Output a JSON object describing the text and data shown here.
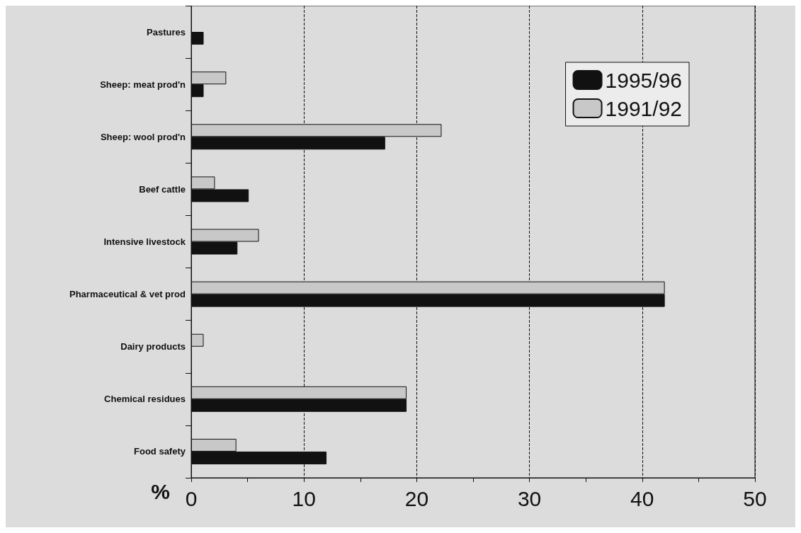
{
  "chart_data": {
    "type": "bar",
    "orientation": "horizontal",
    "xlabel": "%",
    "categories": [
      "Pastures",
      "Sheep: meat prod'n",
      "Sheep: wool prod'n",
      "Beef cattle",
      "Intensive livestock",
      "Pharmaceutical & vet prod",
      "Dairy products",
      "Chemical residues",
      "Food safety"
    ],
    "series": [
      {
        "name": "1991/92",
        "color": "#c8c8c8",
        "values": [
          null,
          3.1,
          22.2,
          2.1,
          6,
          42,
          1.1,
          19.1,
          4
        ]
      },
      {
        "name": "1995/96",
        "color": "#111111",
        "values": [
          1.1,
          1.1,
          17.2,
          5.1,
          4.1,
          42,
          null,
          19.1,
          12
        ]
      }
    ],
    "xlim": [
      0,
      50
    ],
    "xticks": [
      0,
      10,
      20,
      30,
      40,
      50
    ],
    "grid": "x",
    "legend": "top right"
  }
}
